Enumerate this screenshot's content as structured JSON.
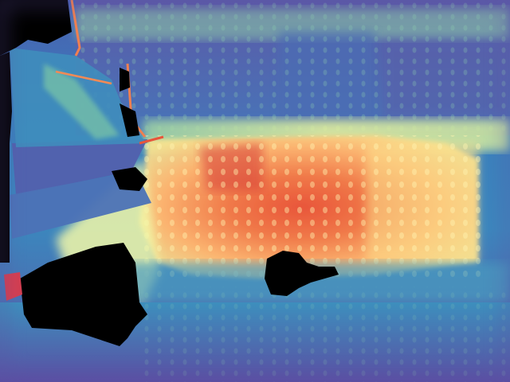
{
  "image": {
    "kind": "depth-map",
    "colormap": "spectral",
    "palette": {
      "near": "#9e0142",
      "warm": "#f46d43",
      "mid": "#fee08b",
      "light": "#e6f598",
      "cool": "#66c2a5",
      "far": "#3288bd",
      "farthest": "#5e4fa2",
      "invalid": "#000000"
    }
  }
}
